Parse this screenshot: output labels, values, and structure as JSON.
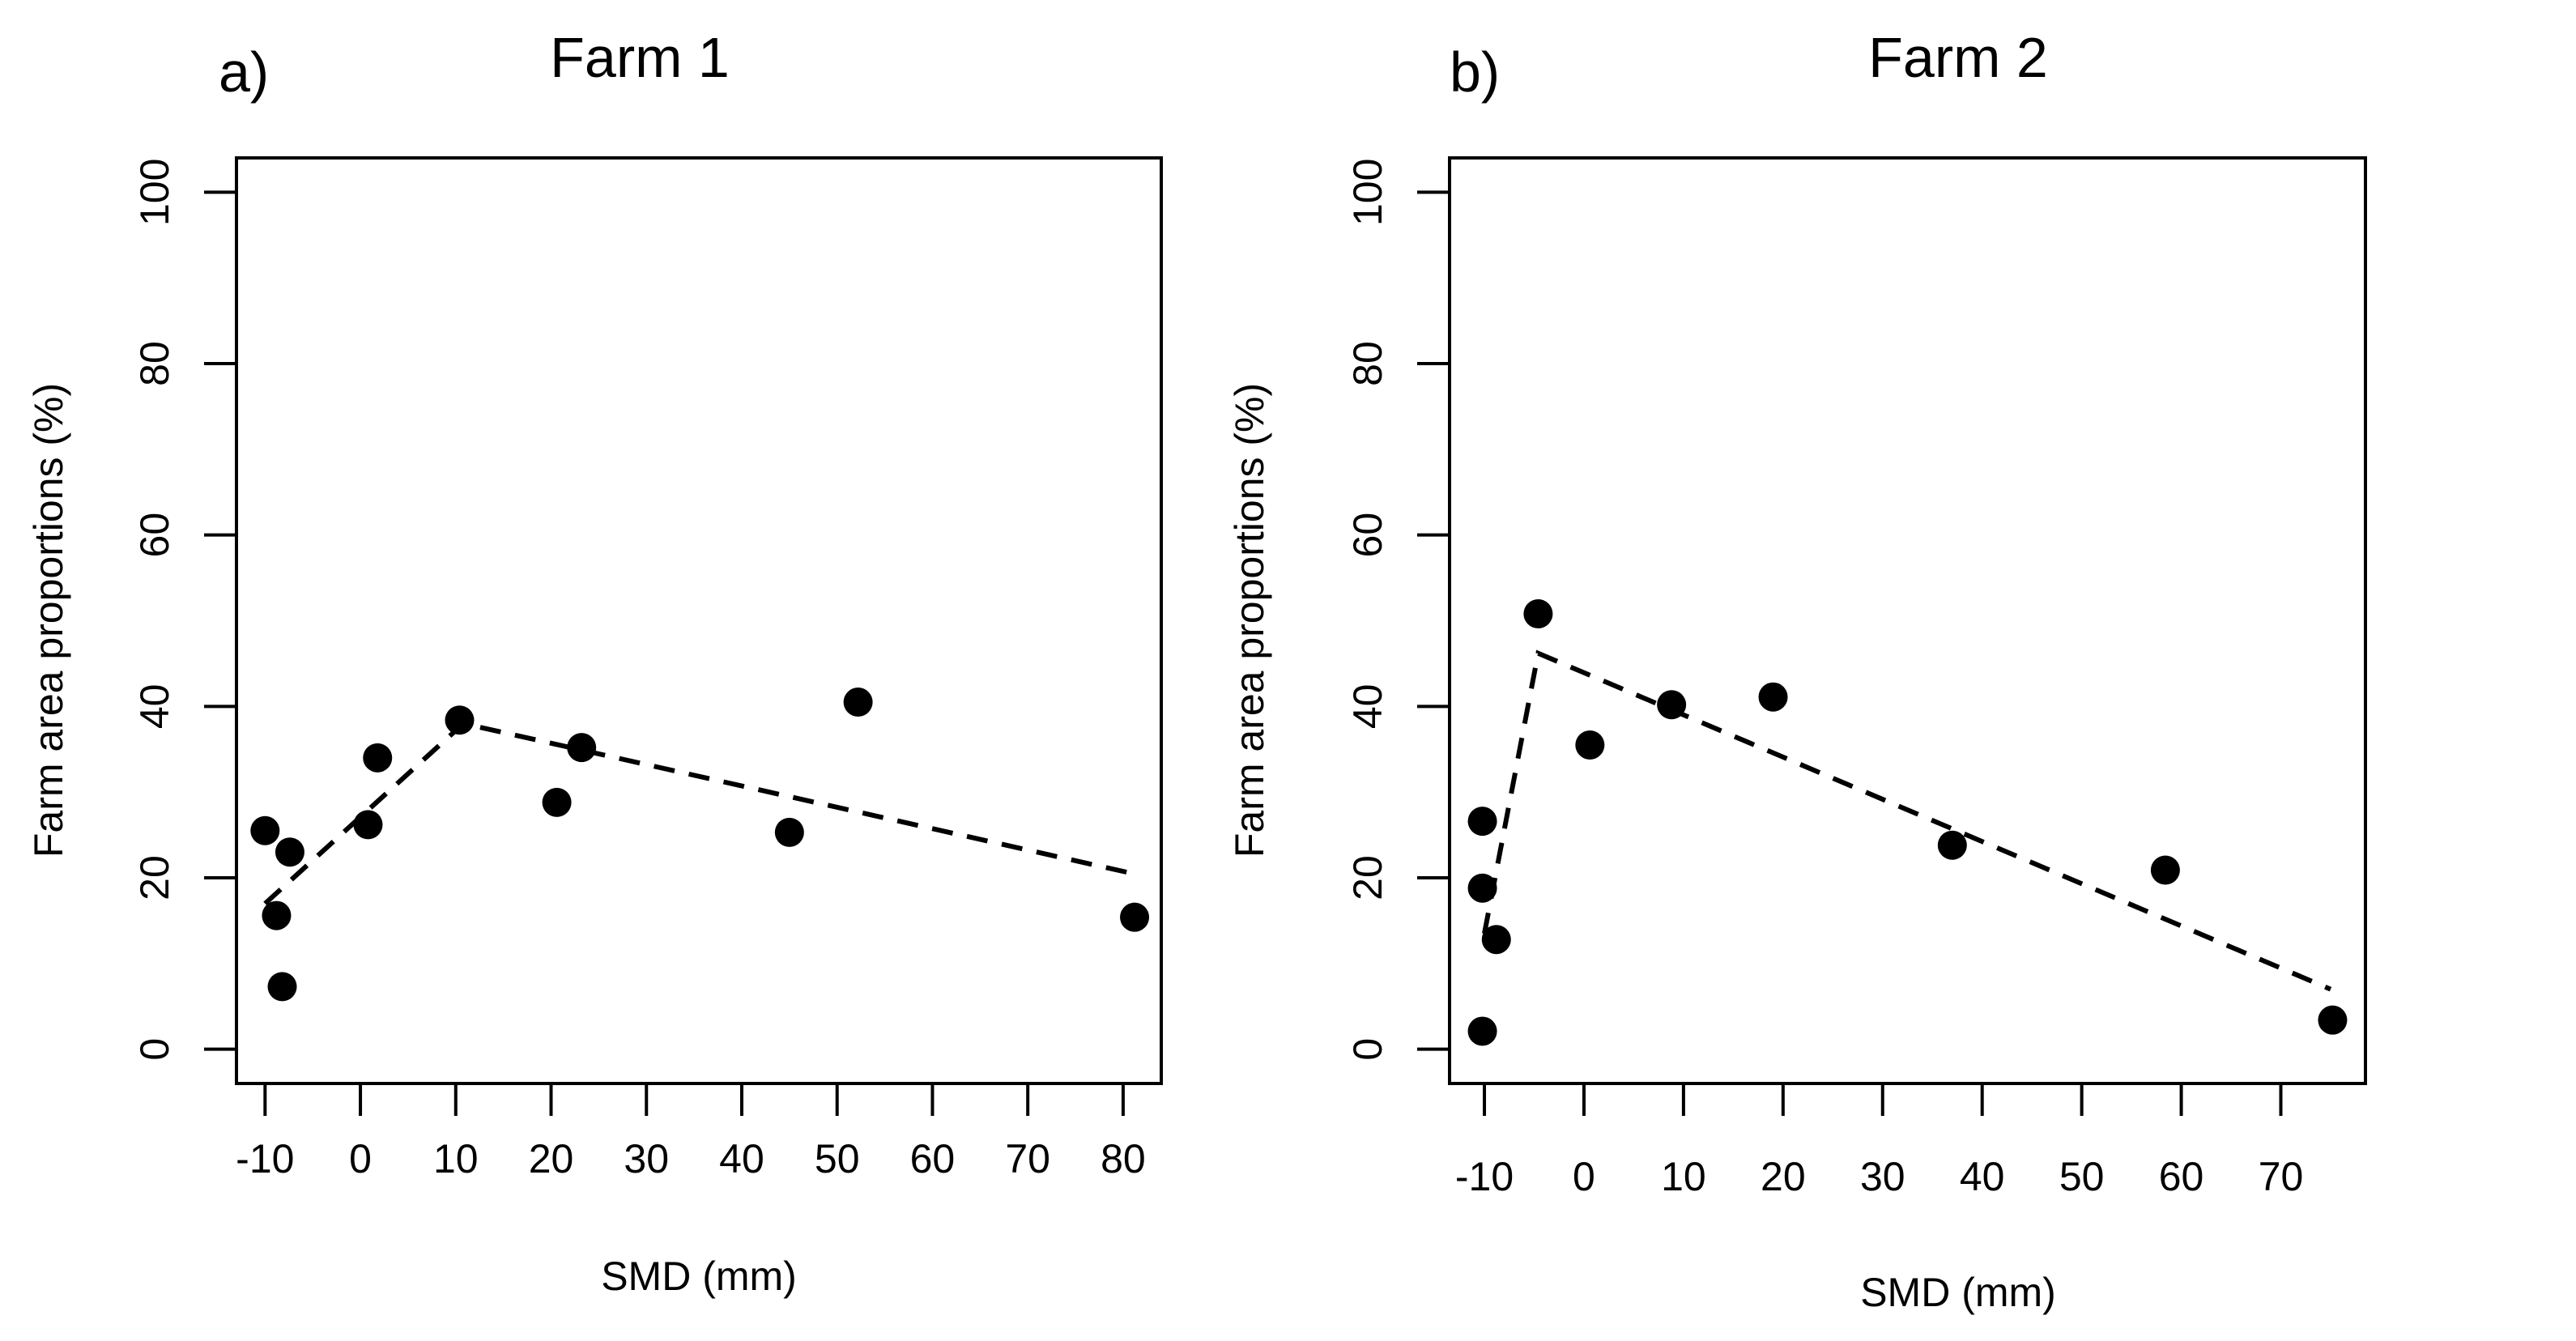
{
  "colors": {
    "ink": "#000000",
    "background": "#ffffff"
  },
  "chart_data": [
    {
      "type": "scatter",
      "panel_label": "a)",
      "title": "Farm 1",
      "xlabel": "SMD (mm)",
      "ylabel": "Farm area proportions (%)",
      "xlim": [
        -13,
        84
      ],
      "ylim": [
        -4,
        104
      ],
      "xticks": [
        -10,
        0,
        10,
        20,
        30,
        40,
        50,
        60,
        70,
        80
      ],
      "yticks": [
        0,
        20,
        40,
        60,
        80,
        100
      ],
      "grid": false,
      "legend": "none",
      "points": [
        {
          "x": -10,
          "y": 25.5
        },
        {
          "x": -8.8,
          "y": 15.6
        },
        {
          "x": -8.2,
          "y": 7.3
        },
        {
          "x": -7.4,
          "y": 23.0
        },
        {
          "x": 0.8,
          "y": 26.2
        },
        {
          "x": 1.8,
          "y": 34.0
        },
        {
          "x": 10.4,
          "y": 38.4
        },
        {
          "x": 20.6,
          "y": 28.8
        },
        {
          "x": 23.2,
          "y": 35.2
        },
        {
          "x": 45.0,
          "y": 25.3
        },
        {
          "x": 52.2,
          "y": 40.5
        },
        {
          "x": 81.2,
          "y": 15.4
        }
      ],
      "trend_line": {
        "style": "dashed",
        "x": [
          -10,
          10.8,
          81.0
        ],
        "y": [
          17.0,
          38.0,
          20.5
        ]
      }
    },
    {
      "type": "scatter",
      "panel_label": "b)",
      "title": "Farm 2",
      "xlabel": "SMD (mm)",
      "ylabel": "Farm area proportions (%)",
      "xlim": [
        -13.5,
        78.5
      ],
      "ylim": [
        -4,
        104
      ],
      "xticks": [
        -10,
        0,
        10,
        20,
        30,
        40,
        50,
        60,
        70
      ],
      "yticks": [
        0,
        20,
        40,
        60,
        80,
        100
      ],
      "grid": false,
      "legend": "none",
      "points": [
        {
          "x": -10.2,
          "y": 26.6
        },
        {
          "x": -10.2,
          "y": 18.8
        },
        {
          "x": -10.2,
          "y": 2.1
        },
        {
          "x": -8.8,
          "y": 12.8
        },
        {
          "x": -4.6,
          "y": 50.8
        },
        {
          "x": 0.6,
          "y": 35.5
        },
        {
          "x": 8.8,
          "y": 40.2
        },
        {
          "x": 19.0,
          "y": 41.1
        },
        {
          "x": 37.0,
          "y": 23.8
        },
        {
          "x": 58.4,
          "y": 20.9
        },
        {
          "x": 75.2,
          "y": 3.4
        }
      ],
      "trend_line": {
        "style": "dashed",
        "x": [
          -10.0,
          -4.6,
          75.0
        ],
        "y": [
          13.5,
          46.2,
          7.0
        ]
      }
    }
  ]
}
